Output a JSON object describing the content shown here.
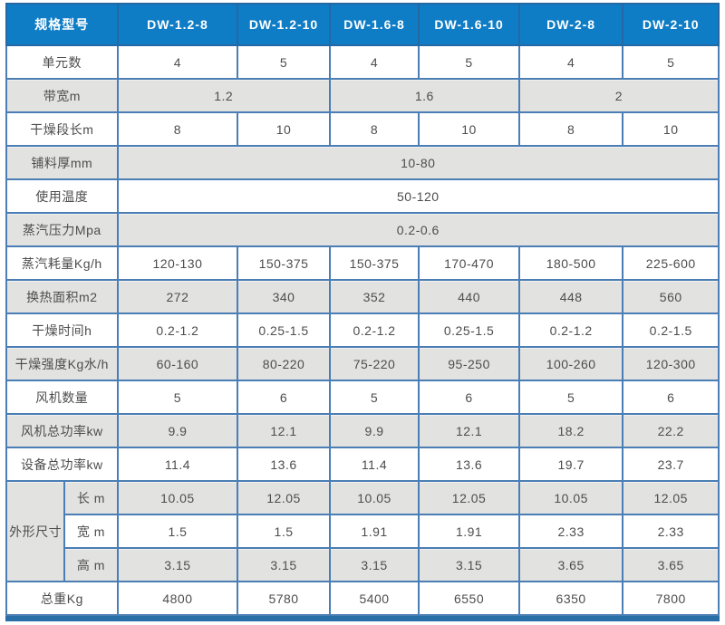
{
  "colors": {
    "header_bg": "#0f7dc5",
    "header_text": "#ffffff",
    "grid_border": "#4a7eb5",
    "outer_border": "#2a6ea8",
    "header_border": "#2468a4",
    "stripe_gray": "#e2e2e1",
    "stripe_white": "#ffffff",
    "body_text": "#4d4d4d"
  },
  "table": {
    "header": {
      "label": "规格型号",
      "models": [
        "DW-1.2-8",
        "DW-1.2-10",
        "DW-1.6-8",
        "DW-1.6-10",
        "DW-2-8",
        "DW-2-10"
      ]
    },
    "dimension_group_label": "外形尺寸",
    "rows": [
      {
        "label": "单元数",
        "cells": [
          {
            "t": "4"
          },
          {
            "t": "5"
          },
          {
            "t": "4"
          },
          {
            "t": "5"
          },
          {
            "t": "4"
          },
          {
            "t": "5"
          }
        ]
      },
      {
        "label": "带宽m",
        "cells": [
          {
            "t": "1.2",
            "s": 2
          },
          {
            "t": "1.6",
            "s": 2
          },
          {
            "t": "2",
            "s": 2
          }
        ]
      },
      {
        "label": "干燥段长m",
        "cells": [
          {
            "t": "8"
          },
          {
            "t": "10"
          },
          {
            "t": "8"
          },
          {
            "t": "10"
          },
          {
            "t": "8"
          },
          {
            "t": "10"
          }
        ]
      },
      {
        "label": "铺料厚mm",
        "cells": [
          {
            "t": "10-80",
            "s": 6
          }
        ]
      },
      {
        "label": "使用温度",
        "cells": [
          {
            "t": "50-120",
            "s": 6
          }
        ]
      },
      {
        "label": "蒸汽压力Mpa",
        "cells": [
          {
            "t": "0.2-0.6",
            "s": 6
          }
        ]
      },
      {
        "label": "蒸汽耗量Kg/h",
        "cells": [
          {
            "t": "120-130"
          },
          {
            "t": "150-375"
          },
          {
            "t": "150-375"
          },
          {
            "t": "170-470"
          },
          {
            "t": "180-500"
          },
          {
            "t": "225-600"
          }
        ]
      },
      {
        "label": "换热面积m2",
        "cells": [
          {
            "t": "272"
          },
          {
            "t": "340"
          },
          {
            "t": "352"
          },
          {
            "t": "440"
          },
          {
            "t": "448"
          },
          {
            "t": "560"
          }
        ]
      },
      {
        "label": "干燥时间h",
        "cells": [
          {
            "t": "0.2-1.2"
          },
          {
            "t": "0.25-1.5"
          },
          {
            "t": "0.2-1.2"
          },
          {
            "t": "0.25-1.5"
          },
          {
            "t": "0.2-1.2"
          },
          {
            "t": "0.2-1.5"
          }
        ]
      },
      {
        "label": "干燥强度Kg水/h",
        "cells": [
          {
            "t": "60-160"
          },
          {
            "t": "80-220"
          },
          {
            "t": "75-220"
          },
          {
            "t": "95-250"
          },
          {
            "t": "100-260"
          },
          {
            "t": "120-300"
          }
        ]
      },
      {
        "label": "风机数量",
        "cells": [
          {
            "t": "5"
          },
          {
            "t": "6"
          },
          {
            "t": "5"
          },
          {
            "t": "6"
          },
          {
            "t": "5"
          },
          {
            "t": "6"
          }
        ]
      },
      {
        "label": "风机总功率kw",
        "cells": [
          {
            "t": "9.9"
          },
          {
            "t": "12.1"
          },
          {
            "t": "9.9"
          },
          {
            "t": "12.1"
          },
          {
            "t": "18.2"
          },
          {
            "t": "22.2"
          }
        ]
      },
      {
        "label": "设备总功率kw",
        "cells": [
          {
            "t": "11.4"
          },
          {
            "t": "13.6"
          },
          {
            "t": "11.4"
          },
          {
            "t": "13.6"
          },
          {
            "t": "19.7"
          },
          {
            "t": "23.7"
          }
        ]
      },
      {
        "label": "长 m",
        "sub": true,
        "group_start": true,
        "cells": [
          {
            "t": "10.05"
          },
          {
            "t": "12.05"
          },
          {
            "t": "10.05"
          },
          {
            "t": "12.05"
          },
          {
            "t": "10.05"
          },
          {
            "t": "12.05"
          }
        ]
      },
      {
        "label": "宽 m",
        "sub": true,
        "cells": [
          {
            "t": "1.5"
          },
          {
            "t": "1.5"
          },
          {
            "t": "1.91"
          },
          {
            "t": "1.91"
          },
          {
            "t": "2.33"
          },
          {
            "t": "2.33"
          }
        ]
      },
      {
        "label": "高 m",
        "sub": true,
        "cells": [
          {
            "t": "3.15"
          },
          {
            "t": "3.15"
          },
          {
            "t": "3.15"
          },
          {
            "t": "3.15"
          },
          {
            "t": "3.65"
          },
          {
            "t": "3.65"
          }
        ]
      },
      {
        "label": "总重Kg",
        "cells": [
          {
            "t": "4800"
          },
          {
            "t": "5780"
          },
          {
            "t": "5400"
          },
          {
            "t": "6550"
          },
          {
            "t": "6350"
          },
          {
            "t": "7800"
          }
        ]
      }
    ]
  }
}
